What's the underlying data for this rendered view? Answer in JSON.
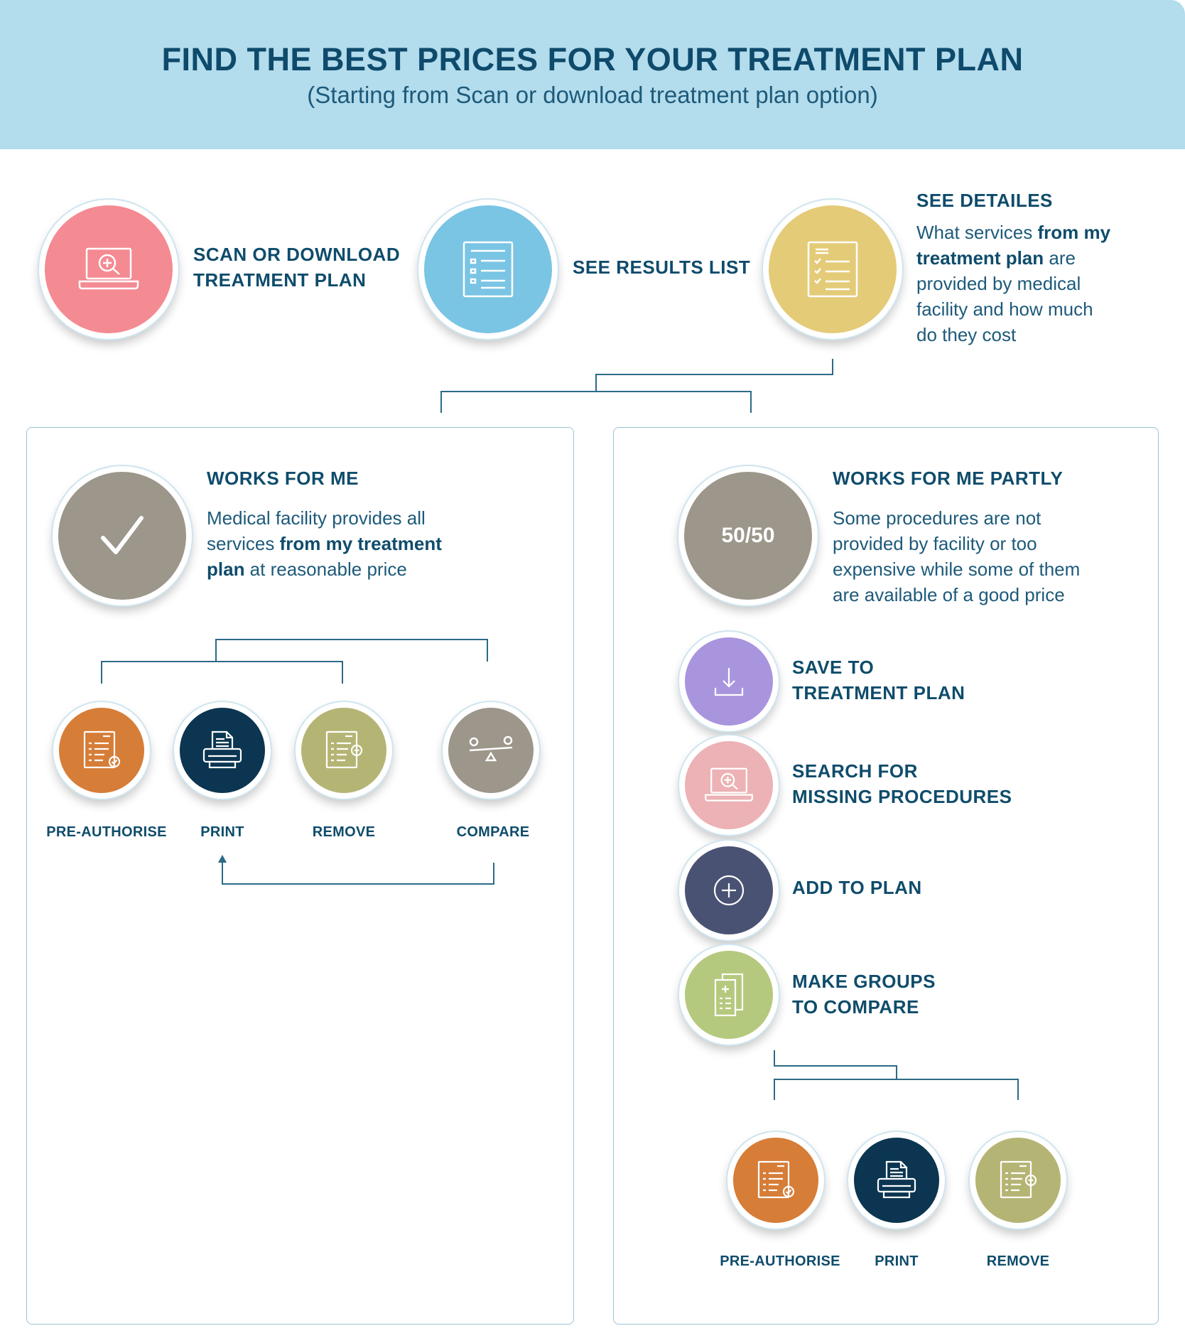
{
  "header": {
    "title": "FIND THE BEST PRICES FOR YOUR TREATMENT PLAN",
    "subtitle": "(Starting from Scan or download treatment plan option)"
  },
  "steps": [
    {
      "line1": "SCAN OR DOWNLOAD",
      "line2": "TREATMENT PLAN",
      "icon": "laptop-search-icon",
      "color": "#f48a92"
    },
    {
      "label": "SEE RESULTS LIST",
      "icon": "list-document-icon",
      "color": "#7ac4e4"
    },
    {
      "label": "SEE DETAILES",
      "icon": "checklist-document-icon",
      "color": "#e4cb78",
      "desc_pre": "What services ",
      "desc_bold1": "from my",
      "desc_bold2": "treatment plan",
      "desc_post": " are",
      "desc_l3": "provided by medical",
      "desc_l4": "facility and how much",
      "desc_l5": "do they cost"
    }
  ],
  "left": {
    "title": "WORKS FOR ME",
    "desc_l1": "Medical facility provides all",
    "desc_l2_pre": "services ",
    "desc_l2_bold": "from my treatment",
    "desc_l3_bold": "plan",
    "desc_l3_post": " at reasonable price",
    "icon": "checkmark-icon",
    "color": "#9c968b",
    "actions": [
      {
        "label": "PRE-AUTHORISE",
        "icon": "document-check-icon",
        "color": "#d67d38"
      },
      {
        "label": "PRINT",
        "icon": "printer-icon",
        "color": "#0b3550"
      },
      {
        "label": "REMOVE",
        "icon": "document-minus-icon",
        "color": "#b4b574"
      },
      {
        "label": "COMPARE",
        "icon": "scale-icon",
        "color": "#9c968b"
      }
    ]
  },
  "right": {
    "title": "WORKS FOR ME PARTLY",
    "badge": "50/50",
    "desc_l1": "Some procedures are not",
    "desc_l2": "provided by facility or too",
    "desc_l3": "expensive while some of them",
    "desc_l4": "are available of a good price",
    "color": "#9c968b",
    "options": [
      {
        "line1": "SAVE TO",
        "line2": "TREATMENT PLAN",
        "icon": "download-icon",
        "color": "#a995de"
      },
      {
        "line1": "SEARCH FOR",
        "line2": "MISSING PROCEDURES",
        "icon": "laptop-search-icon",
        "color": "#ecb2b5"
      },
      {
        "line1": "ADD TO PLAN",
        "line2": "",
        "icon": "plus-circle-icon",
        "color": "#4a5274"
      },
      {
        "line1": "MAKE GROUPS",
        "line2": "TO COMPARE",
        "icon": "document-group-icon",
        "color": "#b5c97e"
      }
    ],
    "actions": [
      {
        "label": "PRE-AUTHORISE",
        "icon": "document-check-icon",
        "color": "#d67d38"
      },
      {
        "label": "PRINT",
        "icon": "printer-icon",
        "color": "#0b3550"
      },
      {
        "label": "REMOVE",
        "icon": "document-minus-icon",
        "color": "#b4b574"
      }
    ]
  }
}
